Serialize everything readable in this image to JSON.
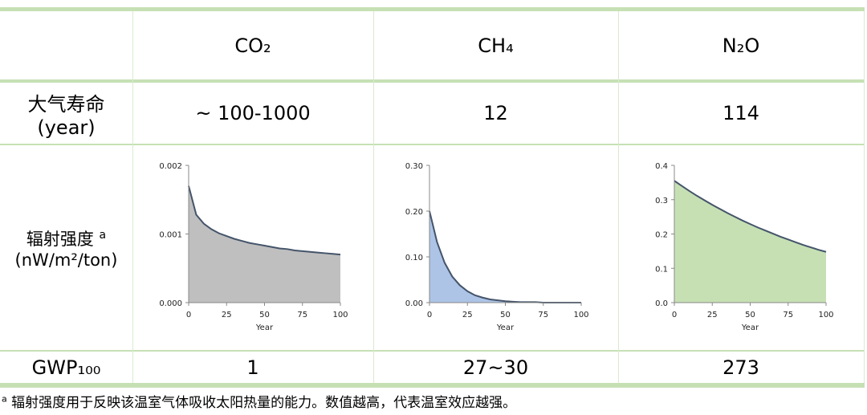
{
  "table": {
    "columns": [
      "CO₂",
      "CH₄",
      "N₂O"
    ],
    "rows": [
      {
        "label": [
          "大气寿命",
          "(year)"
        ],
        "values": [
          "~ 100-1000",
          "12",
          "114"
        ]
      },
      {
        "label": "辐射强度",
        "label_note": "a",
        "unit": "(nW/m²/ton)",
        "charts": [
          {
            "type": "area",
            "x": [
              0,
              5,
              10,
              15,
              20,
              25,
              30,
              35,
              40,
              45,
              50,
              55,
              60,
              65,
              70,
              75,
              80,
              85,
              90,
              95,
              100
            ],
            "values": [
              0.0017,
              0.00128,
              0.00115,
              0.00107,
              0.00101,
              0.00097,
              0.00093,
              0.0009,
              0.00087,
              0.00085,
              0.00083,
              0.00081,
              0.00079,
              0.00078,
              0.00076,
              0.00075,
              0.00074,
              0.00073,
              0.00072,
              0.00071,
              0.0007
            ],
            "xlim": [
              0,
              100
            ],
            "ylim": [
              0,
              0.002
            ],
            "xticks": [
              0,
              25,
              50,
              75,
              100
            ],
            "yticks": [
              {
                "value": 0,
                "label": "0.000"
              },
              0.001,
              0.002
            ],
            "x_label": "Year",
            "color": "#bfbfbf"
          },
          {
            "type": "area",
            "x": [
              0,
              5,
              10,
              15,
              20,
              25,
              30,
              35,
              40,
              45,
              50,
              55,
              60,
              65,
              70,
              75,
              80,
              85,
              90,
              95,
              100
            ],
            "values": [
              0.2,
              0.132,
              0.087,
              0.057,
              0.038,
              0.025,
              0.016,
              0.011,
              0.007,
              0.005,
              0.003,
              0.002,
              0.001,
              0.001,
              0.001,
              0,
              0,
              0,
              0,
              0,
              0
            ],
            "xlim": [
              0,
              100
            ],
            "ylim": [
              0,
              0.3
            ],
            "xticks": [
              0,
              25,
              50,
              75,
              100
            ],
            "yticks": [
              {
                "value": 0,
                "label": "0.00"
              },
              {
                "value": 0.1,
                "label": "0.10"
              },
              {
                "value": 0.2,
                "label": "0.20"
              },
              {
                "value": 0.3,
                "label": "0.30"
              }
            ],
            "x_label": "Year",
            "color": "#adc4e6"
          },
          {
            "type": "area",
            "x": [
              0,
              5,
              10,
              15,
              20,
              25,
              30,
              35,
              40,
              45,
              50,
              55,
              60,
              65,
              70,
              75,
              80,
              85,
              90,
              95,
              100
            ],
            "values": [
              0.355,
              0.34,
              0.325,
              0.311,
              0.298,
              0.285,
              0.273,
              0.261,
              0.25,
              0.239,
              0.229,
              0.219,
              0.21,
              0.201,
              0.192,
              0.184,
              0.176,
              0.168,
              0.161,
              0.154,
              0.148
            ],
            "xlim": [
              0,
              100
            ],
            "ylim": [
              0,
              0.4
            ],
            "xticks": [
              0,
              25,
              50,
              75,
              100
            ],
            "yticks": [
              {
                "value": 0,
                "label": "0.0"
              },
              0.1,
              0.2,
              0.3,
              0.4
            ],
            "x_label": "Year",
            "color": "#c6e0b4"
          }
        ]
      },
      {
        "label": "GWP₁₀₀",
        "values": [
          "1",
          "27~30",
          "273"
        ]
      }
    ]
  },
  "footnote": {
    "marker": "a",
    "text": "辐射强度用于反映该温室气体吸收太阳热量的能力。数值越高，代表温室效应越强。"
  }
}
